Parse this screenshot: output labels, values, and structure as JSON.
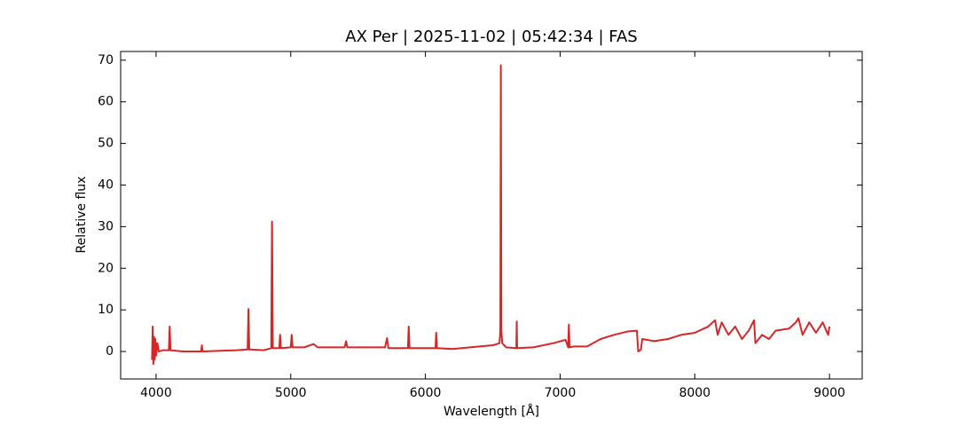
{
  "chart_data": {
    "type": "line",
    "title": "AX Per | 2025-11-02 | 05:42:34 | FAS",
    "xlabel": "Wavelength [Å]",
    "ylabel": "Relative flux",
    "xlim": [
      3737,
      9243
    ],
    "ylim": [
      -6.6,
      72.1
    ],
    "xticks": [
      4000,
      5000,
      6000,
      7000,
      8000,
      9000
    ],
    "yticks": [
      0,
      10,
      20,
      30,
      40,
      50,
      60,
      70
    ],
    "series": [
      {
        "name": "AX Per",
        "color": "#d62728",
        "x": [
          3970,
          3975,
          3980,
          3985,
          3990,
          3995,
          4000,
          4010,
          4020,
          4050,
          4095,
          4101,
          4107,
          4200,
          4335,
          4340,
          4345,
          4500,
          4600,
          4680,
          4686,
          4692,
          4800,
          4855,
          4861,
          4867,
          4915,
          4921,
          4927,
          5000,
          5007,
          5014,
          5100,
          5170,
          5200,
          5400,
          5411,
          5420,
          5700,
          5715,
          5725,
          5870,
          5876,
          5882,
          6075,
          6080,
          6086,
          6200,
          6400,
          6500,
          6550,
          6556,
          6560,
          6564,
          6570,
          6600,
          6675,
          6678,
          6681,
          6800,
          6950,
          7040,
          7060,
          7065,
          7070,
          7100,
          7200,
          7300,
          7400,
          7500,
          7570,
          7580,
          7600,
          7610,
          7700,
          7800,
          7900,
          8000,
          8100,
          8150,
          8170,
          8200,
          8250,
          8300,
          8350,
          8400,
          8440,
          8450,
          8500,
          8550,
          8600,
          8700,
          8750,
          8770,
          8800,
          8850,
          8900,
          8950,
          8990,
          9000
        ],
        "values": [
          -2,
          6,
          -3,
          3.5,
          -2,
          3,
          -1,
          2,
          0,
          0.3,
          0.3,
          6,
          0.3,
          0,
          0,
          1.5,
          0,
          0.2,
          0.3,
          0.5,
          10.2,
          0.5,
          0.3,
          0.8,
          31.2,
          0.8,
          0.8,
          4,
          0.8,
          1,
          4,
          1,
          1,
          1.8,
          1,
          1,
          2.5,
          1,
          1,
          3.2,
          0.8,
          0.8,
          6,
          0.8,
          0.8,
          4.5,
          0.8,
          0.6,
          1.2,
          1.5,
          2,
          5,
          68.8,
          5,
          2,
          1,
          0.8,
          7.2,
          0.8,
          1,
          2,
          2.8,
          1,
          6.5,
          1,
          1.2,
          1.2,
          3,
          4,
          4.8,
          5,
          0,
          0.5,
          3,
          2.5,
          3,
          4,
          4.5,
          6,
          7.5,
          4,
          7,
          4,
          6,
          3,
          5,
          7.5,
          2,
          4,
          3,
          5,
          5.5,
          7,
          8,
          4,
          7,
          4.5,
          7,
          4,
          6
        ]
      }
    ]
  }
}
